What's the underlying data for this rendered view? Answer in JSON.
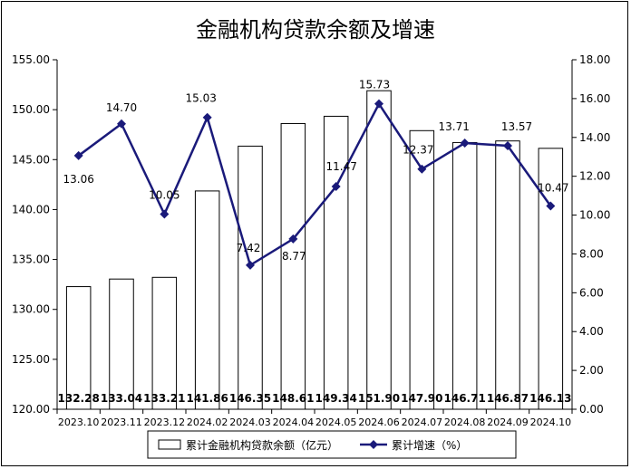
{
  "chart_data": {
    "type": "bar",
    "title": "金融机构贷款余额及增速",
    "categories": [
      "2023.10",
      "2023.11",
      "2023.12",
      "2024.02",
      "2024.03",
      "2024.04",
      "2024.05",
      "2024.06",
      "2024.07",
      "2024.08",
      "2024.09",
      "2024.10"
    ],
    "series": [
      {
        "name": "累计金融机构贷款余额（亿元）",
        "type": "bar",
        "axis": "left",
        "values": [
          132.28,
          133.04,
          133.21,
          141.86,
          146.35,
          148.61,
          149.34,
          151.9,
          147.9,
          146.71,
          146.87,
          146.13
        ],
        "labels": [
          "132.28",
          "133.04",
          "133.21",
          "141.86",
          "146.35",
          "148.61",
          "149.34",
          "151.90",
          "147.90",
          "146.71",
          "146.87",
          "146.13"
        ]
      },
      {
        "name": "累计增速（%）",
        "type": "line",
        "axis": "right",
        "color": "#1a1a7a",
        "values": [
          13.06,
          14.7,
          10.05,
          15.03,
          7.42,
          8.77,
          11.47,
          15.73,
          12.37,
          13.71,
          13.57,
          10.47
        ],
        "labels": [
          "13.06",
          "14.70",
          "10.05",
          "15.03",
          "7.42",
          "8.77",
          "11.47",
          "15.73",
          "12.37",
          "13.71",
          "13.57",
          "10.47"
        ]
      }
    ],
    "y_left": {
      "lim": [
        120,
        155
      ],
      "ticks": [
        "120.00",
        "125.00",
        "130.00",
        "135.00",
        "140.00",
        "145.00",
        "150.00",
        "155.00"
      ]
    },
    "y_right": {
      "lim": [
        0,
        18
      ],
      "ticks": [
        "0.00",
        "2.00",
        "4.00",
        "6.00",
        "8.00",
        "10.00",
        "12.00",
        "14.00",
        "16.00",
        "18.00"
      ]
    },
    "grid": false,
    "legend_position": "bottom"
  }
}
